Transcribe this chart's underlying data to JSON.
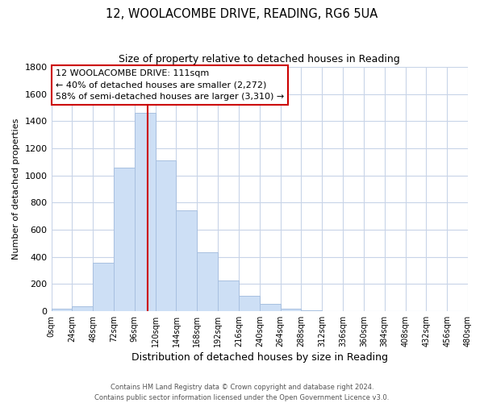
{
  "title_line1": "12, WOOLACOMBE DRIVE, READING, RG6 5UA",
  "title_line2": "Size of property relative to detached houses in Reading",
  "xlabel": "Distribution of detached houses by size in Reading",
  "ylabel": "Number of detached properties",
  "bin_edges": [
    0,
    24,
    48,
    72,
    96,
    120,
    144,
    168,
    192,
    216,
    240,
    264,
    288,
    312,
    336,
    360,
    384,
    408,
    432,
    456,
    480
  ],
  "bar_heights": [
    15,
    35,
    355,
    1060,
    1460,
    1110,
    740,
    435,
    225,
    110,
    55,
    20,
    5,
    0,
    0,
    0,
    0,
    0,
    0,
    0
  ],
  "bar_color": "#cddff5",
  "bar_edge_color": "#a8c0e0",
  "vline_x": 111,
  "vline_color": "#cc0000",
  "annotation_text_line1": "12 WOOLACOMBE DRIVE: 111sqm",
  "annotation_text_line2": "← 40% of detached houses are smaller (2,272)",
  "annotation_text_line3": "58% of semi-detached houses are larger (3,310) →",
  "annotation_box_color": "#ffffff",
  "annotation_box_edge": "#cc0000",
  "ylim": [
    0,
    1800
  ],
  "yticks": [
    0,
    200,
    400,
    600,
    800,
    1000,
    1200,
    1400,
    1600,
    1800
  ],
  "xtick_labels": [
    "0sqm",
    "24sqm",
    "48sqm",
    "72sqm",
    "96sqm",
    "120sqm",
    "144sqm",
    "168sqm",
    "192sqm",
    "216sqm",
    "240sqm",
    "264sqm",
    "288sqm",
    "312sqm",
    "336sqm",
    "360sqm",
    "384sqm",
    "408sqm",
    "432sqm",
    "456sqm",
    "480sqm"
  ],
  "footnote_line1": "Contains HM Land Registry data © Crown copyright and database right 2024.",
  "footnote_line2": "Contains public sector information licensed under the Open Government Licence v3.0.",
  "background_color": "#ffffff",
  "grid_color": "#c8d4e8",
  "title1_fontsize": 10.5,
  "title2_fontsize": 9,
  "ylabel_fontsize": 8,
  "xlabel_fontsize": 9,
  "ytick_fontsize": 8,
  "xtick_fontsize": 7
}
